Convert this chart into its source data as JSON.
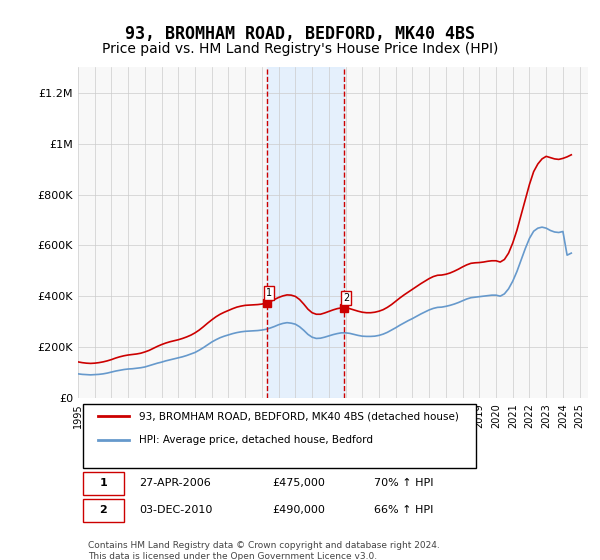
{
  "title": "93, BROMHAM ROAD, BEDFORD, MK40 4BS",
  "subtitle": "Price paid vs. HM Land Registry's House Price Index (HPI)",
  "title_fontsize": 12,
  "subtitle_fontsize": 10,
  "ylabel_ticks": [
    "£0",
    "£200K",
    "£400K",
    "£600K",
    "£800K",
    "£1M",
    "£1.2M"
  ],
  "ytick_values": [
    0,
    200000,
    400000,
    600000,
    800000,
    1000000,
    1200000
  ],
  "ylim": [
    0,
    1300000
  ],
  "xlim_start": 1995.0,
  "xlim_end": 2025.5,
  "background_color": "#ffffff",
  "plot_background": "#f8f8f8",
  "grid_color": "#cccccc",
  "red_line_color": "#cc0000",
  "blue_line_color": "#6699cc",
  "sale1_year": 2006.32,
  "sale1_price": 475000,
  "sale2_year": 2010.92,
  "sale2_price": 490000,
  "shade_color": "#ddeeff",
  "dashed_color": "#cc0000",
  "legend_line1": "93, BROMHAM ROAD, BEDFORD, MK40 4BS (detached house)",
  "legend_line2": "HPI: Average price, detached house, Bedford",
  "table_row1_num": "1",
  "table_row1_date": "27-APR-2006",
  "table_row1_price": "£475,000",
  "table_row1_hpi": "70% ↑ HPI",
  "table_row2_num": "2",
  "table_row2_date": "03-DEC-2010",
  "table_row2_price": "£490,000",
  "table_row2_hpi": "66% ↑ HPI",
  "footnote": "Contains HM Land Registry data © Crown copyright and database right 2024.\nThis data is licensed under the Open Government Licence v3.0.",
  "hpi_red_data": {
    "years": [
      1995.0,
      1995.25,
      1995.5,
      1995.75,
      1996.0,
      1996.25,
      1996.5,
      1996.75,
      1997.0,
      1997.25,
      1997.5,
      1997.75,
      1998.0,
      1998.25,
      1998.5,
      1998.75,
      1999.0,
      1999.25,
      1999.5,
      1999.75,
      2000.0,
      2000.25,
      2000.5,
      2000.75,
      2001.0,
      2001.25,
      2001.5,
      2001.75,
      2002.0,
      2002.25,
      2002.5,
      2002.75,
      2003.0,
      2003.25,
      2003.5,
      2003.75,
      2004.0,
      2004.25,
      2004.5,
      2004.75,
      2005.0,
      2005.25,
      2005.5,
      2005.75,
      2006.0,
      2006.25,
      2006.5,
      2006.75,
      2007.0,
      2007.25,
      2007.5,
      2007.75,
      2008.0,
      2008.25,
      2008.5,
      2008.75,
      2009.0,
      2009.25,
      2009.5,
      2009.75,
      2010.0,
      2010.25,
      2010.5,
      2010.75,
      2011.0,
      2011.25,
      2011.5,
      2011.75,
      2012.0,
      2012.25,
      2012.5,
      2012.75,
      2013.0,
      2013.25,
      2013.5,
      2013.75,
      2014.0,
      2014.25,
      2014.5,
      2014.75,
      2015.0,
      2015.25,
      2015.5,
      2015.75,
      2016.0,
      2016.25,
      2016.5,
      2016.75,
      2017.0,
      2017.25,
      2017.5,
      2017.75,
      2018.0,
      2018.25,
      2018.5,
      2018.75,
      2019.0,
      2019.25,
      2019.5,
      2019.75,
      2020.0,
      2020.25,
      2020.5,
      2020.75,
      2021.0,
      2021.25,
      2021.5,
      2021.75,
      2022.0,
      2022.25,
      2022.5,
      2022.75,
      2023.0,
      2023.25,
      2023.5,
      2023.75,
      2024.0,
      2024.25,
      2024.5
    ],
    "values": [
      143000,
      140000,
      138000,
      137000,
      138000,
      140000,
      143000,
      147000,
      152000,
      158000,
      163000,
      167000,
      170000,
      172000,
      174000,
      177000,
      182000,
      188000,
      196000,
      204000,
      211000,
      217000,
      222000,
      226000,
      230000,
      235000,
      241000,
      248000,
      257000,
      268000,
      281000,
      295000,
      308000,
      320000,
      330000,
      338000,
      345000,
      352000,
      358000,
      362000,
      365000,
      366000,
      367000,
      368000,
      370000,
      374000,
      380000,
      388000,
      396000,
      402000,
      406000,
      405000,
      400000,
      388000,
      370000,
      350000,
      336000,
      330000,
      330000,
      335000,
      341000,
      347000,
      352000,
      355000,
      355000,
      352000,
      347000,
      342000,
      338000,
      336000,
      336000,
      338000,
      342000,
      348000,
      357000,
      368000,
      381000,
      394000,
      406000,
      417000,
      428000,
      439000,
      450000,
      460000,
      470000,
      478000,
      483000,
      484000,
      487000,
      492000,
      499000,
      507000,
      516000,
      524000,
      530000,
      532000,
      533000,
      535000,
      538000,
      540000,
      540000,
      535000,
      545000,
      570000,
      610000,
      660000,
      720000,
      780000,
      840000,
      890000,
      920000,
      940000,
      950000,
      945000,
      940000,
      938000,
      942000,
      948000,
      956000
    ]
  },
  "hpi_blue_data": {
    "years": [
      1995.0,
      1995.25,
      1995.5,
      1995.75,
      1996.0,
      1996.25,
      1996.5,
      1996.75,
      1997.0,
      1997.25,
      1997.5,
      1997.75,
      1998.0,
      1998.25,
      1998.5,
      1998.75,
      1999.0,
      1999.25,
      1999.5,
      1999.75,
      2000.0,
      2000.25,
      2000.5,
      2000.75,
      2001.0,
      2001.25,
      2001.5,
      2001.75,
      2002.0,
      2002.25,
      2002.5,
      2002.75,
      2003.0,
      2003.25,
      2003.5,
      2003.75,
      2004.0,
      2004.25,
      2004.5,
      2004.75,
      2005.0,
      2005.25,
      2005.5,
      2005.75,
      2006.0,
      2006.25,
      2006.5,
      2006.75,
      2007.0,
      2007.25,
      2007.5,
      2007.75,
      2008.0,
      2008.25,
      2008.5,
      2008.75,
      2009.0,
      2009.25,
      2009.5,
      2009.75,
      2010.0,
      2010.25,
      2010.5,
      2010.75,
      2011.0,
      2011.25,
      2011.5,
      2011.75,
      2012.0,
      2012.25,
      2012.5,
      2012.75,
      2013.0,
      2013.25,
      2013.5,
      2013.75,
      2014.0,
      2014.25,
      2014.5,
      2014.75,
      2015.0,
      2015.25,
      2015.5,
      2015.75,
      2016.0,
      2016.25,
      2016.5,
      2016.75,
      2017.0,
      2017.25,
      2017.5,
      2017.75,
      2018.0,
      2018.25,
      2018.5,
      2018.75,
      2019.0,
      2019.25,
      2019.5,
      2019.75,
      2020.0,
      2020.25,
      2020.5,
      2020.75,
      2021.0,
      2021.25,
      2021.5,
      2021.75,
      2022.0,
      2022.25,
      2022.5,
      2022.75,
      2023.0,
      2023.25,
      2023.5,
      2023.75,
      2024.0,
      2024.25,
      2024.5
    ],
    "values": [
      96000,
      94000,
      93000,
      92000,
      93000,
      94000,
      96000,
      99000,
      103000,
      107000,
      110000,
      113000,
      115000,
      116000,
      118000,
      120000,
      123000,
      128000,
      133000,
      138000,
      142000,
      147000,
      151000,
      155000,
      159000,
      163000,
      168000,
      174000,
      180000,
      189000,
      199000,
      210000,
      221000,
      230000,
      238000,
      244000,
      249000,
      254000,
      258000,
      261000,
      263000,
      264000,
      265000,
      266000,
      268000,
      271000,
      276000,
      282000,
      289000,
      294000,
      297000,
      295000,
      291000,
      281000,
      267000,
      251000,
      240000,
      235000,
      236000,
      240000,
      245000,
      250000,
      254000,
      257000,
      257000,
      255000,
      251000,
      247000,
      244000,
      243000,
      243000,
      244000,
      247000,
      252000,
      259000,
      268000,
      277000,
      287000,
      296000,
      305000,
      313000,
      322000,
      331000,
      339000,
      347000,
      353000,
      357000,
      358000,
      361000,
      365000,
      370000,
      376000,
      383000,
      390000,
      395000,
      397000,
      399000,
      401000,
      403000,
      405000,
      405000,
      401000,
      410000,
      430000,
      460000,
      498000,
      543000,
      588000,
      628000,
      656000,
      668000,
      672000,
      668000,
      659000,
      653000,
      651000,
      655000,
      562000,
      570000
    ]
  }
}
